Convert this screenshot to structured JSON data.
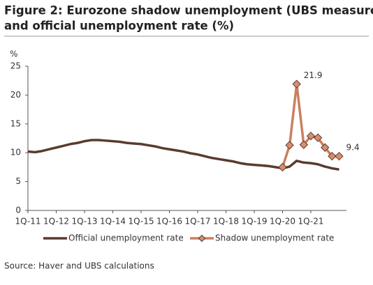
{
  "chart_data": {
    "type": "line",
    "title": [
      "Figure 2: Eurozone shadow unemployment (UBS measure)",
      "and official unemployment rate (%)"
    ],
    "y_label": "%",
    "source": "Source: Haver and UBS calculations",
    "categories": [
      "1Q-11",
      null,
      null,
      null,
      "1Q-12",
      null,
      null,
      null,
      "1Q-13",
      null,
      null,
      null,
      "1Q-14",
      null,
      null,
      null,
      "1Q-15",
      null,
      null,
      null,
      "1Q-16",
      null,
      null,
      null,
      "1Q-17",
      null,
      null,
      null,
      "1Q-18",
      null,
      null,
      null,
      "1Q-19",
      null,
      null,
      null,
      "1Q-20",
      null,
      null,
      null,
      "1Q-21",
      null,
      null,
      null,
      null
    ],
    "ylim": [
      0,
      25
    ],
    "yticks": [
      0,
      5,
      10,
      15,
      20,
      25
    ],
    "grid": false,
    "legend": "bottom",
    "series": [
      {
        "name": "Official unemployment rate",
        "color": "#5a3b2e",
        "marker": "none",
        "values": [
          10.2,
          10.1,
          10.3,
          10.6,
          10.9,
          11.2,
          11.5,
          11.7,
          12.0,
          12.2,
          12.2,
          12.1,
          12.0,
          11.9,
          11.7,
          11.6,
          11.5,
          11.3,
          11.1,
          10.8,
          10.6,
          10.4,
          10.2,
          9.9,
          9.7,
          9.4,
          9.1,
          8.9,
          8.7,
          8.5,
          8.2,
          8.0,
          7.9,
          7.8,
          7.7,
          7.5,
          7.3,
          7.6,
          8.6,
          8.3,
          8.2,
          8.0,
          7.6,
          7.3,
          7.1
        ]
      },
      {
        "name": "Shadow unemployment rate",
        "color": "#c9805f",
        "marker": "diamond",
        "values": [
          null,
          null,
          null,
          null,
          null,
          null,
          null,
          null,
          null,
          null,
          null,
          null,
          null,
          null,
          null,
          null,
          null,
          null,
          null,
          null,
          null,
          null,
          null,
          null,
          null,
          null,
          null,
          null,
          null,
          null,
          null,
          null,
          null,
          null,
          null,
          null,
          7.5,
          11.3,
          21.9,
          11.4,
          12.9,
          12.6,
          10.9,
          9.4,
          9.4
        ],
        "value_labels": [
          null,
          null,
          null,
          null,
          null,
          null,
          null,
          null,
          null,
          null,
          null,
          null,
          null,
          null,
          null,
          null,
          null,
          null,
          null,
          null,
          null,
          null,
          null,
          null,
          null,
          null,
          null,
          null,
          null,
          null,
          null,
          null,
          null,
          null,
          null,
          null,
          null,
          null,
          "21.9",
          null,
          null,
          null,
          null,
          null,
          "9.4"
        ]
      }
    ]
  }
}
